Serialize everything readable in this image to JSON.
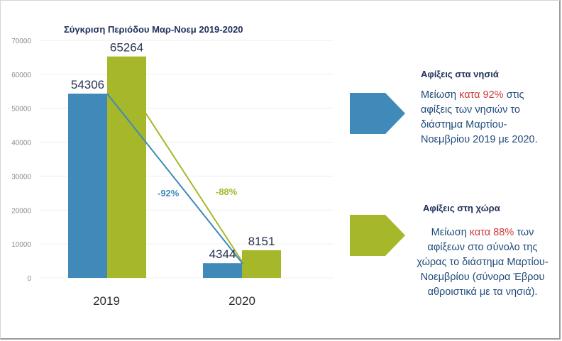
{
  "chart_data": {
    "type": "bar",
    "title": "Σύγκριση Περιόδου Μαρ-Νοεμ 2019-2020",
    "categories": [
      "2019",
      "2020"
    ],
    "series": [
      {
        "values": [
          54306,
          4344
        ],
        "color": "#3f8ab8"
      },
      {
        "values": [
          65264,
          8151
        ],
        "color": "#a6b82a"
      }
    ],
    "ylim": [
      0,
      70000
    ],
    "yticks": [
      "0",
      "10000",
      "20000",
      "30000",
      "40000",
      "50000",
      "60000",
      "70000"
    ],
    "grid": true,
    "annotations": [
      {
        "text": "-92%",
        "color": "#3f8ab8"
      },
      {
        "text": "-88%",
        "color": "#a6b82a"
      }
    ]
  },
  "panels": [
    {
      "title": "Αφίξεις στα νησιά",
      "text_pre": "Μείωση ",
      "text_hl": "κατα 92%",
      "text_post": " στις αφίξεις των νησιών το διάστημα Μαρτίου-Νοεμβρίου 2019 με 2020.",
      "arrow_color": "#3f8ab8"
    },
    {
      "title": "Αφίξεις στη χώρα",
      "text_pre": "Μείωση ",
      "text_hl": "κατα 88%",
      "text_post": " των αφίξεων στο σύνολο της χώρας το διάστημα Μαρτίου-Νοεμβρίου (σύνορα Έβρου αθροιστικά με τα νησιά).",
      "arrow_color": "#a6b82a"
    }
  ]
}
